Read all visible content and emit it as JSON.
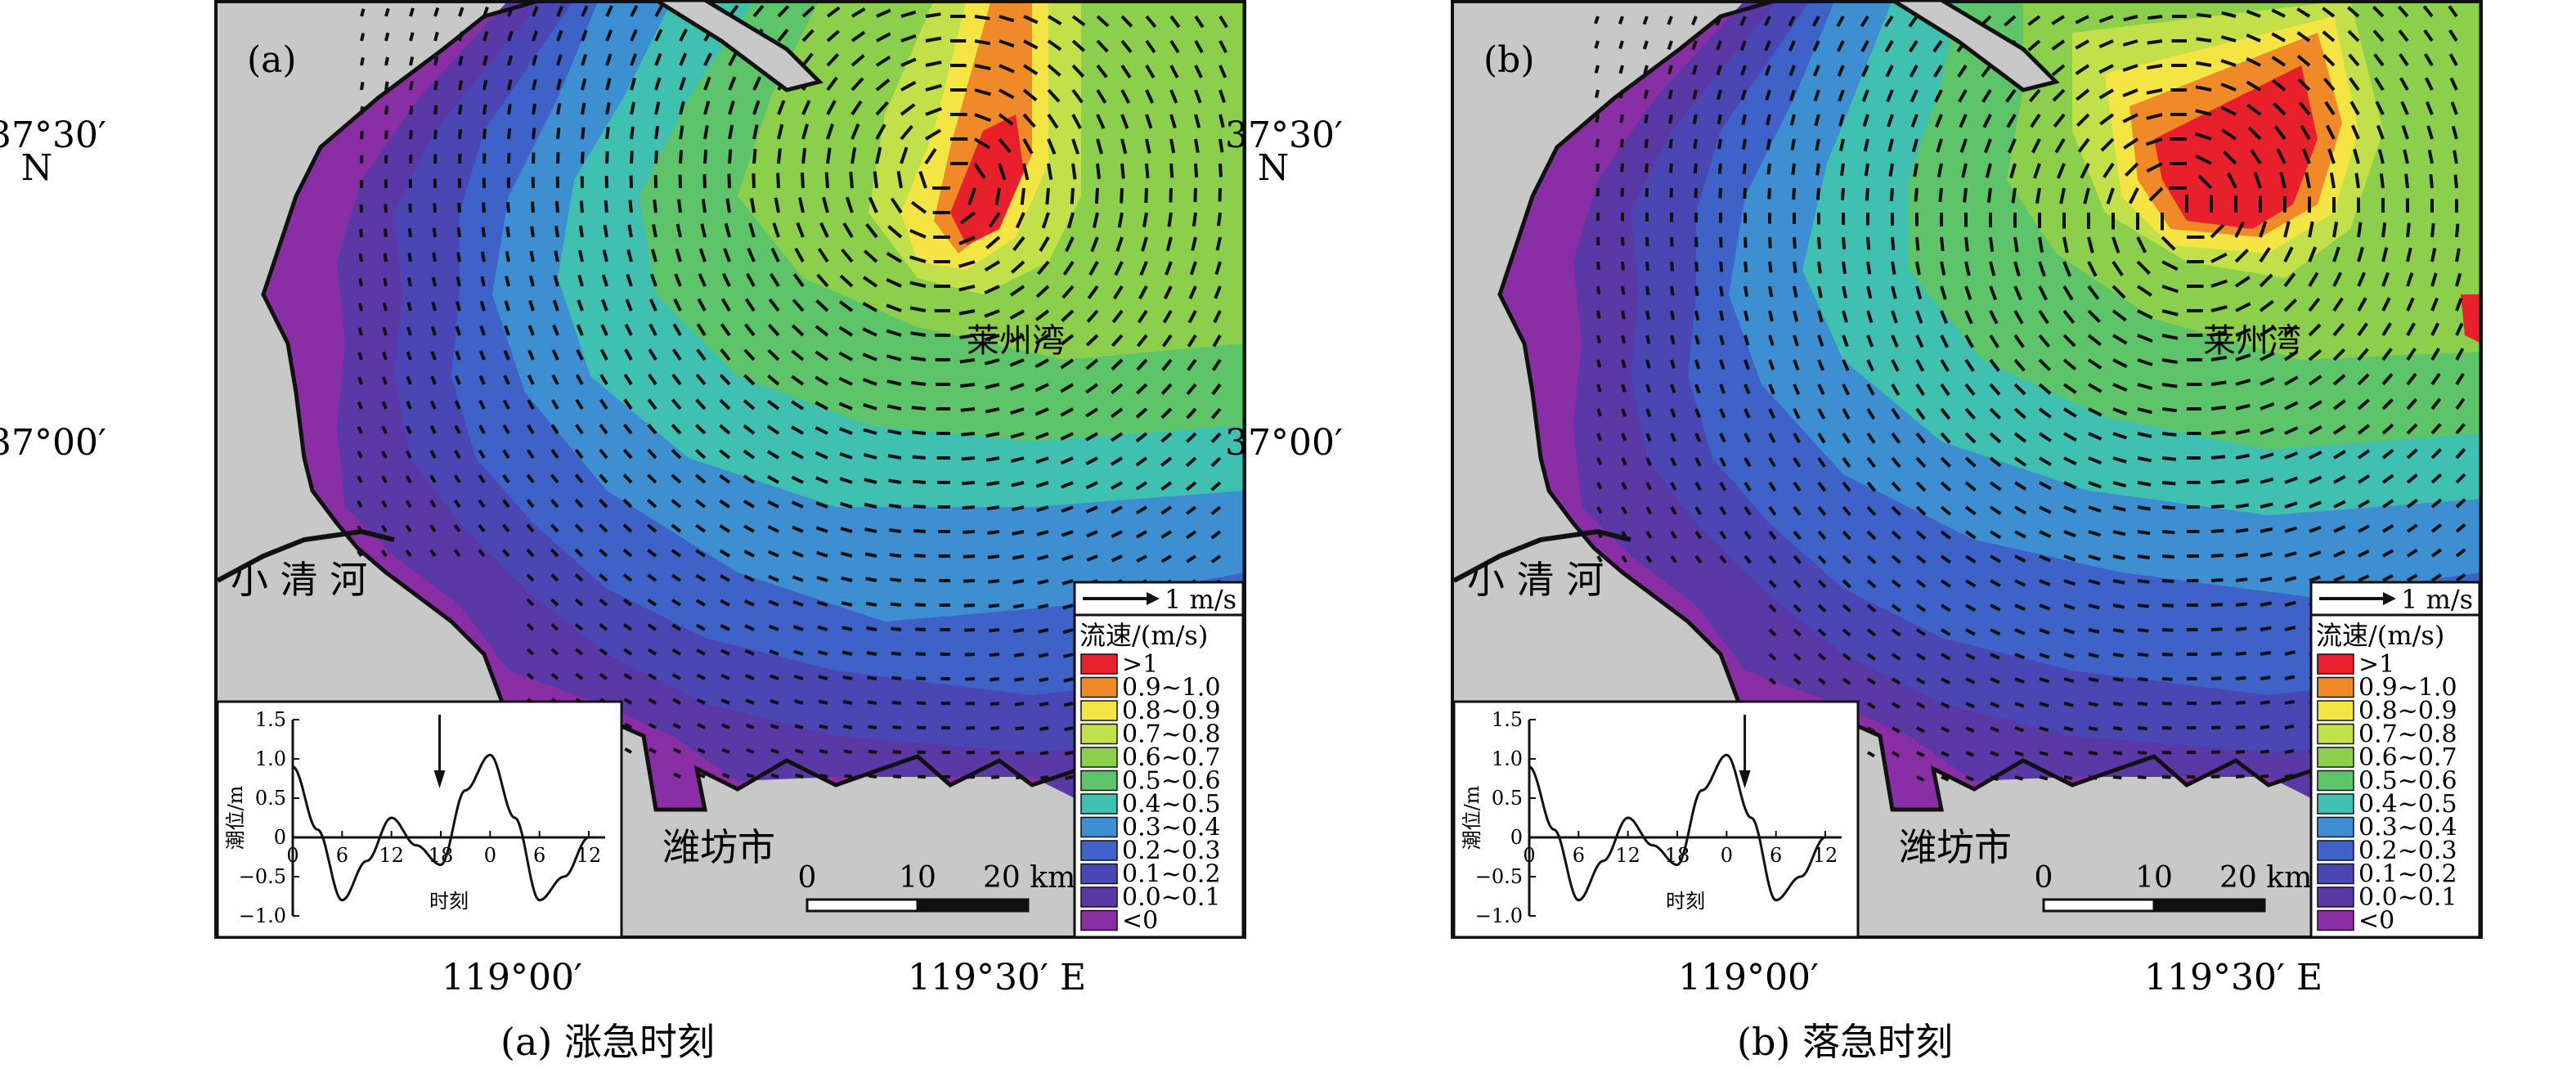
{
  "panels": [
    {
      "id": "a",
      "panel_label": "(a)",
      "caption": "(a) 涨急时刻",
      "place_labels": {
        "river": "小 清 河",
        "bay": "莱州湾",
        "city": "潍坊市"
      },
      "tide_marker_time_fraction": 0.47
    },
    {
      "id": "b",
      "panel_label": "(b)",
      "caption": "(b) 落急时刻",
      "place_labels": {
        "river": "小 清 河",
        "bay": "莱州湾",
        "city": "潍坊市"
      },
      "tide_marker_time_fraction": 0.69
    }
  ],
  "axes": {
    "lat_labels": [
      "37°30′",
      "N",
      "37°00′"
    ],
    "lon_labels": [
      "119°00′",
      "119°30′ E"
    ]
  },
  "vector_scale": {
    "label": "1 m/s"
  },
  "legend": {
    "title": "流速/(m/s)",
    "items": [
      {
        "label": ">1",
        "color": "#e8202c"
      },
      {
        "label": "0.9~1.0",
        "color": "#f08a28"
      },
      {
        "label": "0.8~0.9",
        "color": "#f4e444"
      },
      {
        "label": "0.7~0.8",
        "color": "#c2e04a"
      },
      {
        "label": "0.6~0.7",
        "color": "#8ccf4c"
      },
      {
        "label": "0.5~0.6",
        "color": "#5ec46a"
      },
      {
        "label": "0.4~0.5",
        "color": "#3fc0b0"
      },
      {
        "label": "0.3~0.4",
        "color": "#3e8fd2"
      },
      {
        "label": "0.2~0.3",
        "color": "#3f62c8"
      },
      {
        "label": "0.1~0.2",
        "color": "#4a46b4"
      },
      {
        "label": "0.0~0.1",
        "color": "#5a38a6"
      },
      {
        "label": "<0",
        "color": "#8a2ea6"
      }
    ]
  },
  "scale_bar": {
    "labels": [
      "0",
      "10",
      "20 km"
    ]
  },
  "tide_inset": {
    "ylabel": "潮位/m",
    "xlabel": "时刻",
    "yticks": [
      "1.5",
      "1.0",
      "0.5",
      "0",
      "−0.5",
      "−1.0"
    ],
    "xticks": [
      "0",
      "6",
      "12",
      "18",
      "0",
      "6",
      "12"
    ],
    "curve": {
      "t_hours": [
        0,
        3,
        6,
        9,
        12,
        15,
        18,
        21,
        24,
        27,
        30,
        33,
        36
      ],
      "level_m": [
        0.9,
        0.1,
        -0.8,
        -0.3,
        0.25,
        -0.1,
        -0.35,
        0.6,
        1.05,
        0.25,
        -0.8,
        -0.5,
        0.0
      ]
    }
  },
  "colors": {
    "land": "#c8c8c8",
    "coast": "#111111",
    "vector": "#111111"
  }
}
